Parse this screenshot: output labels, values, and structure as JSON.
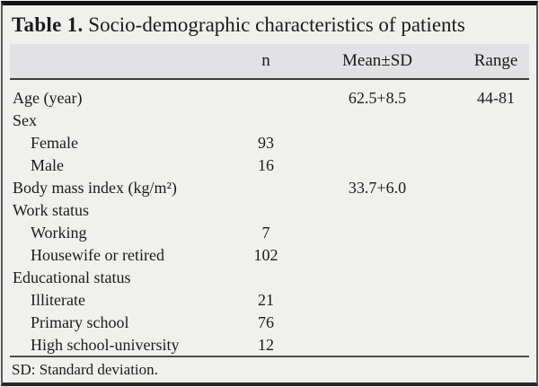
{
  "table": {
    "caption_label": "Table 1.",
    "caption_title": " Socio-demographic characteristics of patients",
    "header": {
      "col_label": "",
      "col_n": "n",
      "col_mean_sd": "Mean±SD",
      "col_range": "Range"
    },
    "rows": [
      {
        "label": "Age (year)",
        "indent": false,
        "n": "",
        "mean_sd": "62.5+8.5",
        "range": "44-81"
      },
      {
        "label": "Sex",
        "indent": false,
        "n": "",
        "mean_sd": "",
        "range": ""
      },
      {
        "label": "Female",
        "indent": true,
        "n": "93",
        "mean_sd": "",
        "range": ""
      },
      {
        "label": "Male",
        "indent": true,
        "n": "16",
        "mean_sd": "",
        "range": ""
      },
      {
        "label": "Body mass index (kg/m²)",
        "indent": false,
        "n": "",
        "mean_sd": "33.7+6.0",
        "range": ""
      },
      {
        "label": "Work status",
        "indent": false,
        "n": "",
        "mean_sd": "",
        "range": ""
      },
      {
        "label": "Working",
        "indent": true,
        "n": "7",
        "mean_sd": "",
        "range": ""
      },
      {
        "label": "Housewife or retired",
        "indent": true,
        "n": "102",
        "mean_sd": "",
        "range": ""
      },
      {
        "label": "Educational status",
        "indent": false,
        "n": "",
        "mean_sd": "",
        "range": ""
      },
      {
        "label": "Illiterate",
        "indent": true,
        "n": "21",
        "mean_sd": "",
        "range": ""
      },
      {
        "label": "Primary school",
        "indent": true,
        "n": "76",
        "mean_sd": "",
        "range": ""
      },
      {
        "label": "High school-university",
        "indent": true,
        "n": "12",
        "mean_sd": "",
        "range": ""
      }
    ],
    "footnote": "SD: Standard deviation.",
    "colors": {
      "background": "#f0f0ee",
      "header_band": "#e2e2e4",
      "text": "#1b1b1b",
      "frame_top": "#141414",
      "frame_bottom": "#272727",
      "frame_side": "#5a5a5a"
    }
  }
}
